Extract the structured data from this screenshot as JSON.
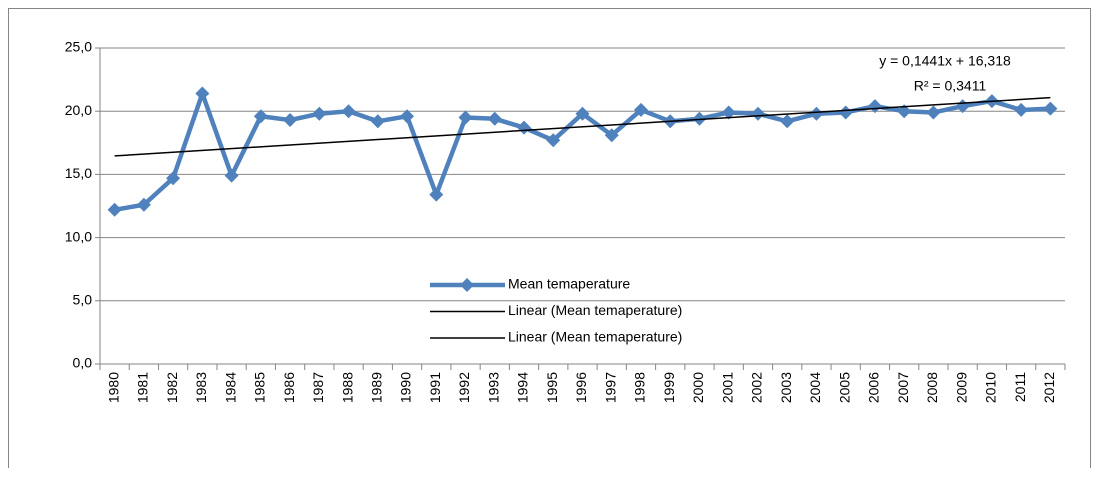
{
  "chart_data": {
    "type": "line",
    "categories": [
      "1980",
      "1981",
      "1982",
      "1983",
      "1984",
      "1985",
      "1986",
      "1987",
      "1988",
      "1989",
      "1990",
      "1991",
      "1992",
      "1993",
      "1994",
      "1995",
      "1996",
      "1997",
      "1998",
      "1999",
      "2000",
      "2001",
      "2002",
      "2003",
      "2004",
      "2005",
      "2006",
      "2007",
      "2008",
      "2009",
      "2010",
      "2011",
      "2012"
    ],
    "series": [
      {
        "name": "Mean temaperature",
        "color": "#4f81bd",
        "values": [
          12.2,
          12.6,
          14.7,
          21.4,
          14.9,
          19.6,
          19.3,
          19.8,
          20.0,
          19.2,
          19.6,
          13.4,
          19.5,
          19.4,
          18.7,
          17.7,
          19.8,
          18.1,
          20.1,
          19.2,
          19.4,
          19.9,
          19.8,
          19.2,
          19.8,
          19.9,
          20.4,
          20.0,
          19.9,
          20.4,
          20.8,
          20.1,
          20.2
        ]
      }
    ],
    "trendlines": [
      {
        "name": "Linear (Mean temaperature)",
        "color": "#000000",
        "slope": 0.1441,
        "intercept": 16.318
      },
      {
        "name": "Linear (Mean temaperature)",
        "color": "#000000"
      }
    ],
    "annotations": [
      "y = 0,1441x + 16,318",
      "R² = 0,3411"
    ],
    "ylim": [
      0,
      25
    ],
    "yticks": [
      {
        "value": 0,
        "label": "0,0"
      },
      {
        "value": 5,
        "label": "5,0"
      },
      {
        "value": 10,
        "label": "10,0"
      },
      {
        "value": 15,
        "label": "15,0"
      },
      {
        "value": 20,
        "label": "20,0"
      },
      {
        "value": 25,
        "label": "25,0"
      }
    ],
    "grid": true
  }
}
